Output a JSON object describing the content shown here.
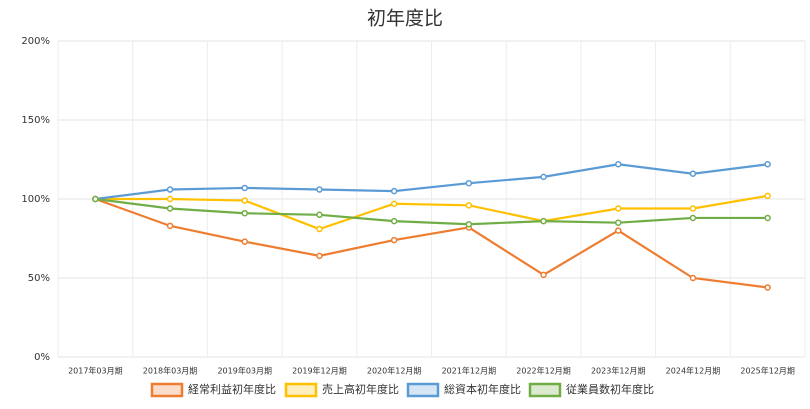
{
  "chart_data": {
    "type": "line",
    "title": "初年度比",
    "categories": [
      "2017年03月期",
      "2018年03月期",
      "2019年03月期",
      "2019年12月期",
      "2020年12月期",
      "2021年12月期",
      "2022年12月期",
      "2023年12月期",
      "2024年12月期",
      "2025年12月期"
    ],
    "series": [
      {
        "name": "経常利益初年度比",
        "color": "#ed7d31",
        "values": [
          100,
          83,
          73,
          64,
          74,
          82,
          52,
          80,
          50,
          44
        ]
      },
      {
        "name": "売上高初年度比",
        "color": "#ffc000",
        "values": [
          100,
          100,
          99,
          81,
          97,
          96,
          86,
          94,
          94,
          102
        ]
      },
      {
        "name": "総資本初年度比",
        "color": "#5b9bd5",
        "values": [
          100,
          106,
          107,
          106,
          105,
          110,
          114,
          122,
          116,
          122
        ]
      },
      {
        "name": "従業員数初年度比",
        "color": "#70ad47",
        "values": [
          100,
          94,
          91,
          90,
          86,
          84,
          86,
          85,
          88,
          88
        ]
      }
    ],
    "ylim": [
      0,
      200
    ],
    "yticks": [
      {
        "value": 0,
        "label": "0%"
      },
      {
        "value": 50,
        "label": "50%"
      },
      {
        "value": 100,
        "label": "100%"
      },
      {
        "value": 150,
        "label": "150%"
      },
      {
        "value": 200,
        "label": "200%"
      }
    ],
    "grid": true,
    "legend": "bottom"
  }
}
